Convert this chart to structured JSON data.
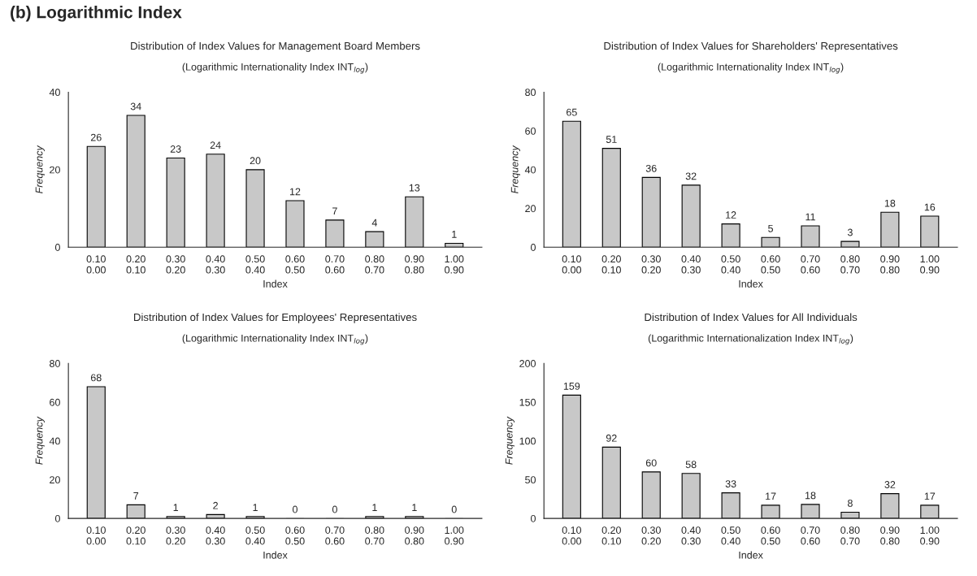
{
  "chart_data": [
    {
      "type": "bar",
      "title": "Distribution of Index Values for Management Board Members",
      "subtitle": "(Logarithmic Internationality Index INT$_{log}$)",
      "xlabel": "Index",
      "ylabel": "Frequency",
      "annotations": [
        "(b) Logarithmic Index"
      ],
      "categories": [
        "0.10\n0.00",
        "0.20\n0.10",
        "0.30\n0.20",
        "0.40\n0.30",
        "0.50\n0.40",
        "0.60\n0.50",
        "0.70\n0.60",
        "0.80\n0.70",
        "0.90\n0.80",
        "1.00\n0.90"
      ],
      "values": [
        26,
        34,
        23,
        24,
        20,
        12,
        7,
        4,
        13,
        1
      ],
      "color": "#c8c8c8",
      "ylim": [
        0,
        40
      ],
      "yticks": [
        0,
        20,
        40
      ],
      "data_labels": true,
      "grid": false
    },
    {
      "type": "bar",
      "title": "Distribution of Index Values for Shareholders' Representatives",
      "subtitle": "(Logarithmic Internationality Index INT$_{log}$)",
      "xlabel": "Index",
      "ylabel": "Frequency",
      "categories": [
        "0.10\n0.00",
        "0.20\n0.10",
        "0.30\n0.20",
        "0.40\n0.30",
        "0.50\n0.40",
        "0.60\n0.50",
        "0.70\n0.60",
        "0.80\n0.70",
        "0.90\n0.80",
        "1.00\n0.90"
      ],
      "values": [
        65,
        51,
        36,
        32,
        12,
        5,
        11,
        3,
        18,
        16
      ],
      "color": "#c8c8c8",
      "ylim": [
        0,
        80
      ],
      "yticks": [
        0,
        20,
        40,
        60,
        80
      ],
      "data_labels": true,
      "grid": false
    },
    {
      "type": "bar",
      "title": "Distribution of Index Values for Employees' Representatives",
      "subtitle": "(Logarithmic Internationality Index INT$_{log}$)",
      "xlabel": "Index",
      "ylabel": "Frequency",
      "categories": [
        "0.10\n0.00",
        "0.20\n0.10",
        "0.30\n0.20",
        "0.40\n0.30",
        "0.50\n0.40",
        "0.60\n0.50",
        "0.70\n0.60",
        "0.80\n0.70",
        "0.90\n0.80",
        "1.00\n0.90"
      ],
      "values": [
        68,
        7,
        1,
        2,
        1,
        0,
        0,
        1,
        1,
        0
      ],
      "color": "#c8c8c8",
      "ylim": [
        0,
        80
      ],
      "yticks": [
        0,
        20,
        40,
        60,
        80
      ],
      "data_labels": true,
      "grid": false
    },
    {
      "type": "bar",
      "title": "Distribution of Index Values for All Individuals",
      "subtitle": "(Logarithmic Internationalization Index INT$_{log}$)",
      "xlabel": "Index",
      "ylabel": "Frequency",
      "categories": [
        "0.10\n0.00",
        "0.20\n0.10",
        "0.30\n0.20",
        "0.40\n0.30",
        "0.50\n0.40",
        "0.60\n0.50",
        "0.70\n0.60",
        "0.80\n0.70",
        "0.90\n0.80",
        "1.00\n0.90"
      ],
      "values": [
        159,
        92,
        60,
        58,
        33,
        17,
        18,
        8,
        32,
        17
      ],
      "color": "#c8c8c8",
      "ylim": [
        0,
        200
      ],
      "yticks": [
        0,
        50,
        100,
        150,
        200
      ],
      "data_labels": true,
      "grid": false
    }
  ]
}
